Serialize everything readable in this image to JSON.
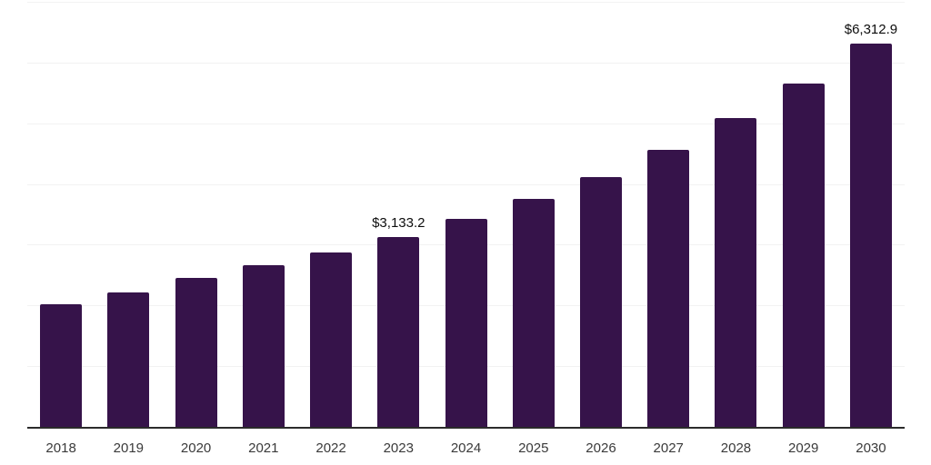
{
  "chart_data": {
    "type": "bar",
    "title": "",
    "xlabel": "",
    "ylabel": "",
    "categories": [
      "2018",
      "2019",
      "2020",
      "2021",
      "2022",
      "2023",
      "2024",
      "2025",
      "2026",
      "2027",
      "2028",
      "2029",
      "2030"
    ],
    "values": [
      2015,
      2210,
      2450,
      2660,
      2870,
      3133.2,
      3420,
      3750,
      4120,
      4560,
      5080,
      5660,
      6312.9
    ],
    "data_labels": [
      {
        "category": "2023",
        "text": "$3,133.2"
      },
      {
        "category": "2030",
        "text": "$6,312.9"
      }
    ],
    "ylim": [
      0,
      7000
    ],
    "gridline_interval": 1000,
    "grid": true,
    "legend": false,
    "y_tick_labels_visible": false,
    "colors": {
      "bar": "#36134A",
      "axis_line": "#2b2b2b",
      "gridline": "#f2f2f2",
      "tick_label": "#3a3a3a",
      "data_label": "#0d0d0d",
      "background": "#ffffff"
    }
  }
}
